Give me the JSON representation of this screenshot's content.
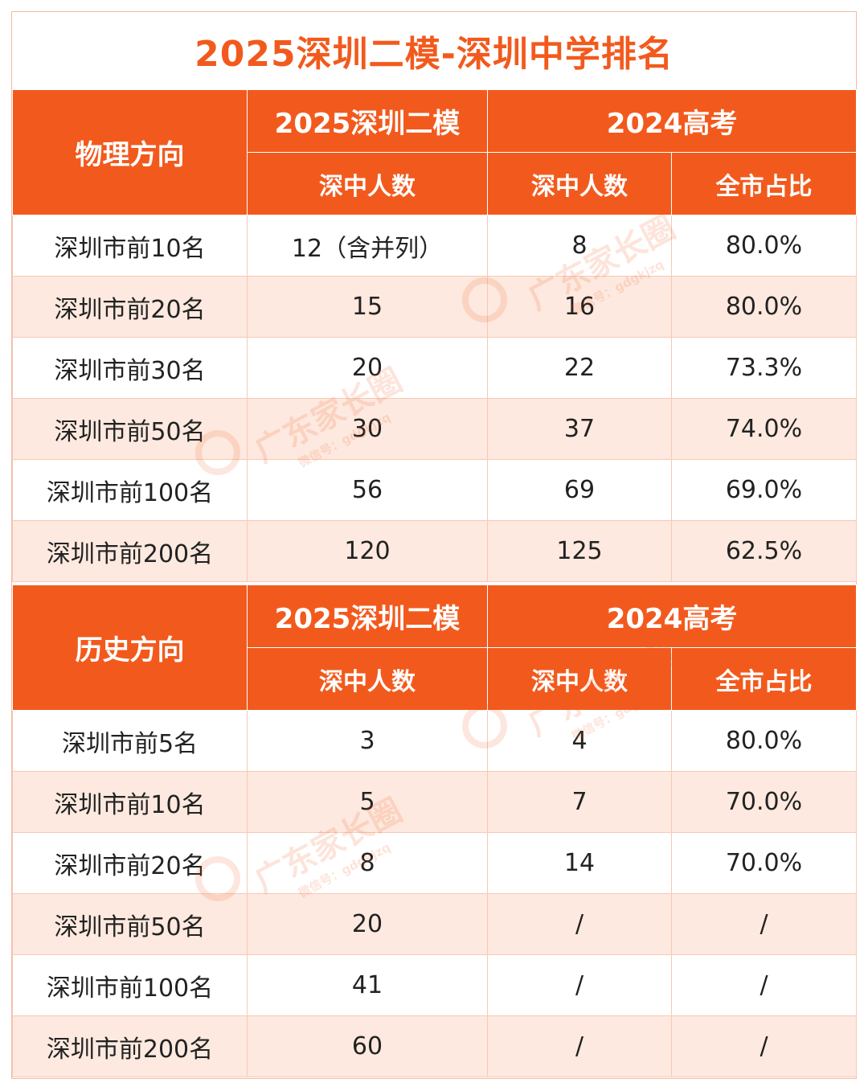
{
  "title": "2025深圳二模-深圳中学排名",
  "colors": {
    "accent": "#f25a1d",
    "stripe": "#fde9df"
  },
  "watermark": {
    "text": "广东家长圈",
    "sub": "微信号：gdgkjzq"
  },
  "physics": {
    "direction_label": "物理方向",
    "group1_label": "2025深圳二模",
    "group2_label": "2024高考",
    "col1_label": "深中人数",
    "col2_label": "深中人数",
    "col3_label": "全市占比",
    "rows": [
      {
        "rank": "深圳市前10名",
        "m2025": "12（含并列）",
        "g2024": "8",
        "ratio": "80.0%"
      },
      {
        "rank": "深圳市前20名",
        "m2025": "15",
        "g2024": "16",
        "ratio": "80.0%"
      },
      {
        "rank": "深圳市前30名",
        "m2025": "20",
        "g2024": "22",
        "ratio": "73.3%"
      },
      {
        "rank": "深圳市前50名",
        "m2025": "30",
        "g2024": "37",
        "ratio": "74.0%"
      },
      {
        "rank": "深圳市前100名",
        "m2025": "56",
        "g2024": "69",
        "ratio": "69.0%"
      },
      {
        "rank": "深圳市前200名",
        "m2025": "120",
        "g2024": "125",
        "ratio": "62.5%"
      }
    ]
  },
  "history": {
    "direction_label": "历史方向",
    "group1_label": "2025深圳二模",
    "group2_label": "2024高考",
    "col1_label": "深中人数",
    "col2_label": "深中人数",
    "col3_label": "全市占比",
    "rows": [
      {
        "rank": "深圳市前5名",
        "m2025": "3",
        "g2024": "4",
        "ratio": "80.0%"
      },
      {
        "rank": "深圳市前10名",
        "m2025": "5",
        "g2024": "7",
        "ratio": "70.0%"
      },
      {
        "rank": "深圳市前20名",
        "m2025": "8",
        "g2024": "14",
        "ratio": "70.0%"
      },
      {
        "rank": "深圳市前50名",
        "m2025": "20",
        "g2024": "/",
        "ratio": "/"
      },
      {
        "rank": "深圳市前100名",
        "m2025": "41",
        "g2024": "/",
        "ratio": "/"
      },
      {
        "rank": "深圳市前200名",
        "m2025": "60",
        "g2024": "/",
        "ratio": "/"
      }
    ]
  }
}
